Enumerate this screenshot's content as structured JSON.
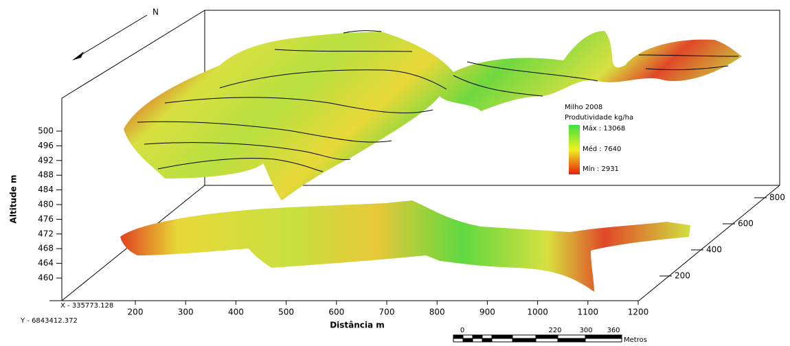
{
  "compass": {
    "label": "N"
  },
  "altitude_axis": {
    "label": "Altitude m",
    "ticks": [
      500,
      496,
      492,
      488,
      484,
      480,
      476,
      472,
      468,
      464,
      460
    ]
  },
  "distance_axis": {
    "label": "Distância m",
    "ticks": [
      200,
      300,
      400,
      500,
      600,
      700,
      800,
      900,
      1000,
      1100,
      1200
    ]
  },
  "depth_axis": {
    "ticks": [
      200,
      400,
      600,
      800
    ]
  },
  "origin": {
    "x": "X - 335773.128",
    "y": "Y - 6843412.372"
  },
  "legend": {
    "title": "Milho 2008",
    "subtitle": "Produtividade kg/ha",
    "max": "Máx : 13068",
    "mean": "Méd : 7640",
    "min": "Mín : 2931"
  },
  "scale_bar": {
    "ticks": [
      0,
      220,
      300,
      360
    ],
    "unit": "Metros"
  }
}
